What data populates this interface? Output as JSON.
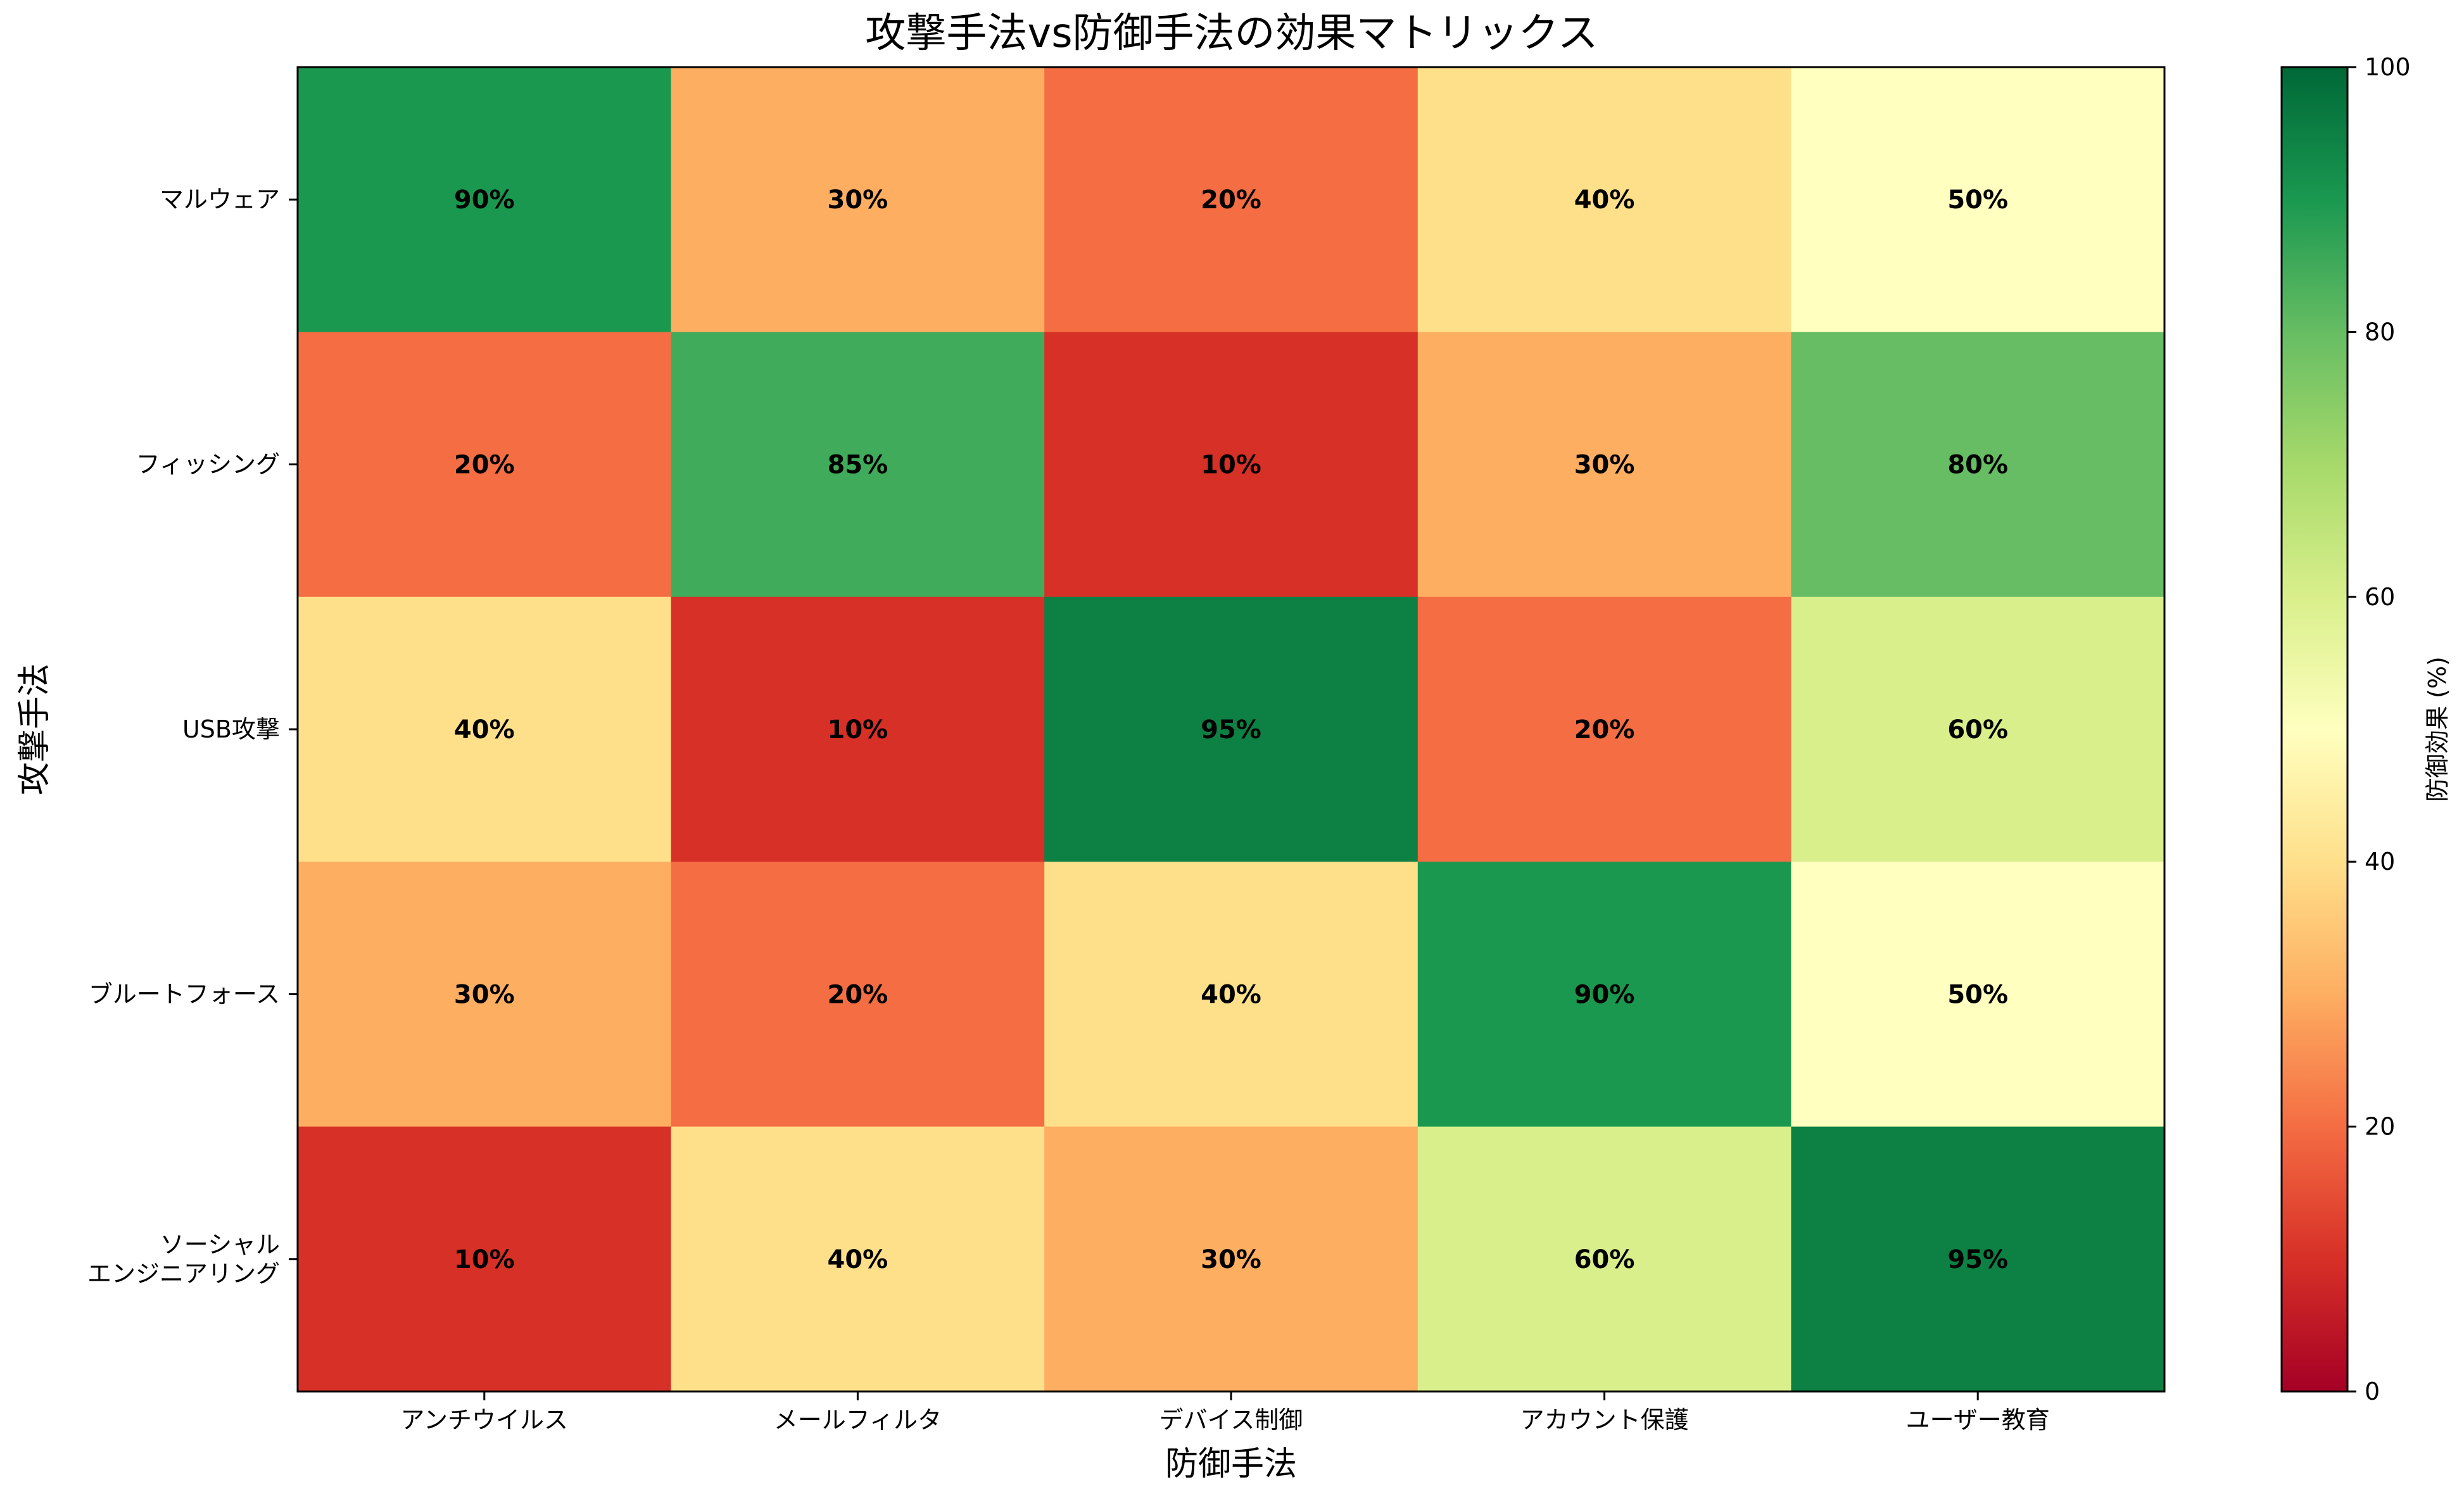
{
  "chart_data": {
    "type": "heatmap",
    "title": "攻撃手法vs防御手法の効果マトリックス",
    "xlabel": "防御手法",
    "ylabel": "攻撃手法",
    "x_categories": [
      "アンチウイルス",
      "メールフィルタ",
      "デバイス制御",
      "アカウント保護",
      "ユーザー教育"
    ],
    "y_categories": [
      [
        "マルウェア"
      ],
      [
        "フィッシング"
      ],
      [
        "USB攻撃"
      ],
      [
        "ブルートフォース"
      ],
      [
        "ソーシャル",
        "エンジニアリング"
      ]
    ],
    "values": [
      [
        90,
        30,
        20,
        40,
        50
      ],
      [
        20,
        85,
        10,
        30,
        80
      ],
      [
        40,
        10,
        95,
        20,
        60
      ],
      [
        30,
        20,
        40,
        90,
        50
      ],
      [
        10,
        40,
        30,
        60,
        95
      ]
    ],
    "value_suffix": "%",
    "colorbar": {
      "label": "防御効果 (%)",
      "range": [
        0,
        100
      ],
      "ticks": [
        0,
        20,
        40,
        60,
        80,
        100
      ],
      "colormap": "RdYlGn"
    }
  }
}
